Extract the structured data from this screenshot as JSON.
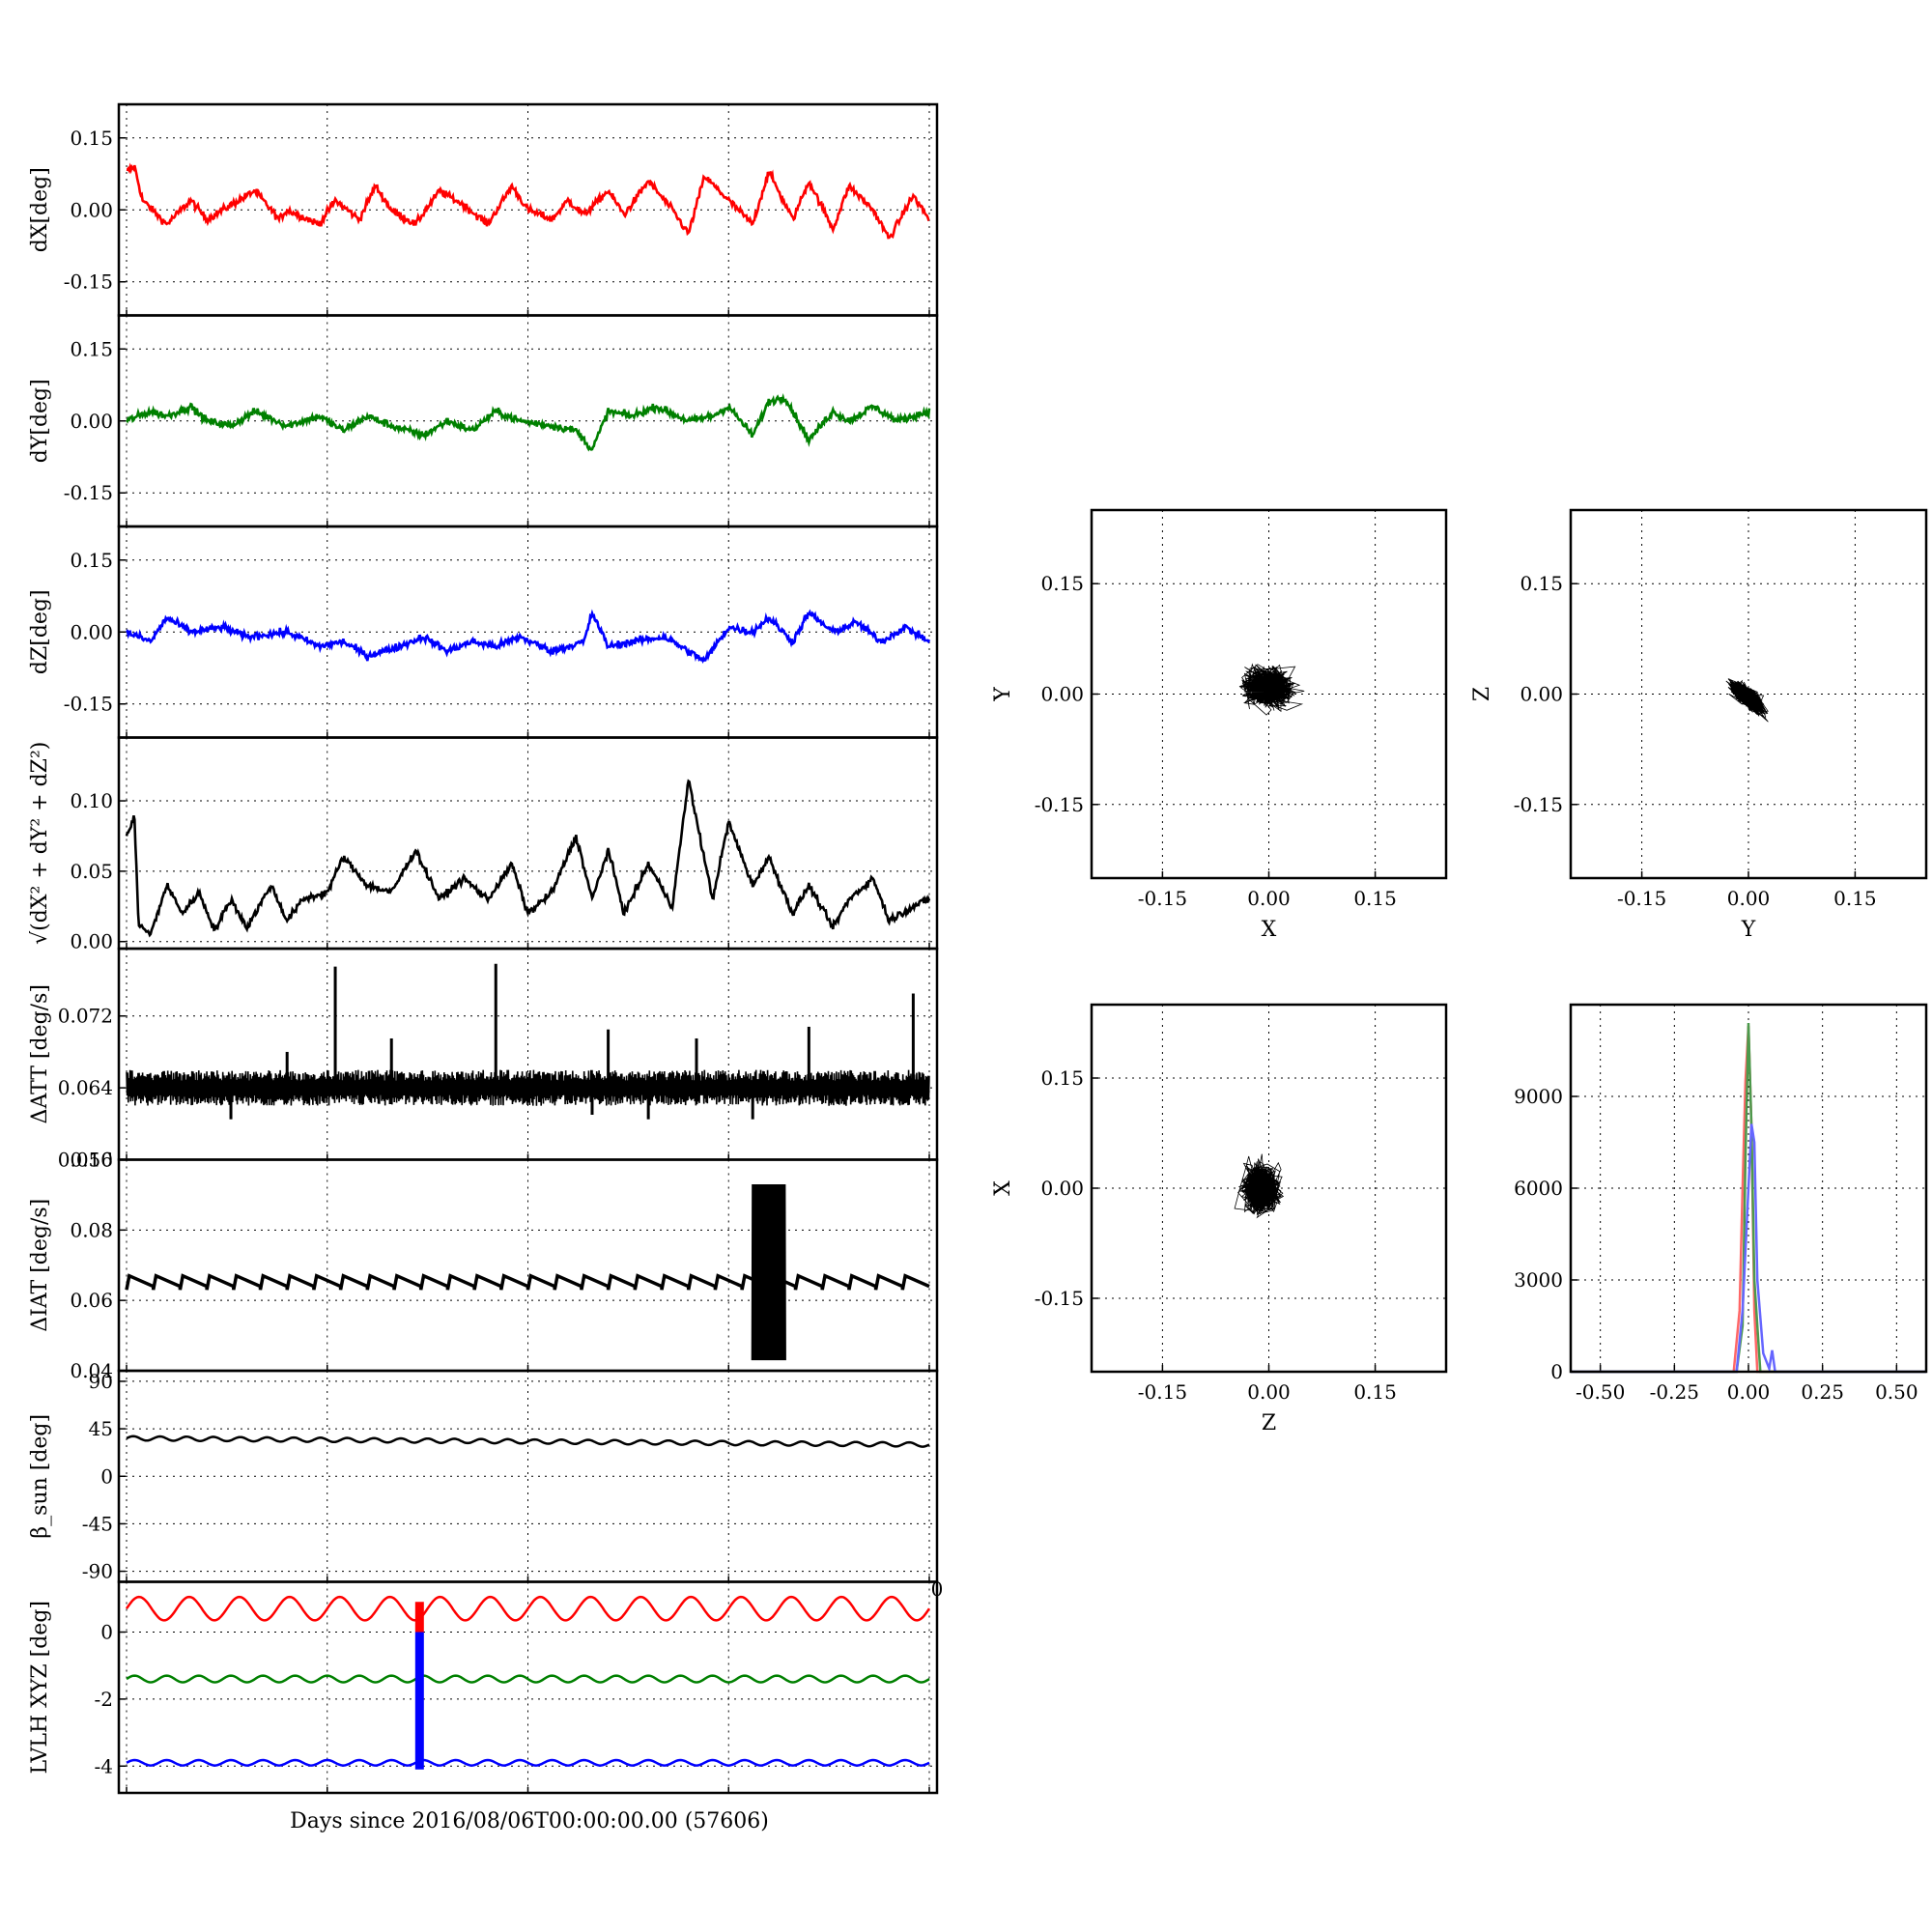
{
  "figure": {
    "xlabel": "Days since 2016/08/06T00:00:00.00 (57606)",
    "stray_tick": "0"
  },
  "chart_data": [
    {
      "id": "dX",
      "type": "line",
      "ylabel": "dX[deg]",
      "color": "#ff0000",
      "ylim": [
        -0.22,
        0.22
      ],
      "yticks": [
        "0.15",
        "0.00",
        "-0.15"
      ],
      "ytick_values": [
        0.15,
        0.0,
        -0.15
      ],
      "xlim": [
        0,
        1
      ],
      "x": [
        0.0,
        0.01,
        0.02,
        0.05,
        0.08,
        0.1,
        0.13,
        0.16,
        0.19,
        0.2,
        0.24,
        0.26,
        0.29,
        0.31,
        0.33,
        0.36,
        0.39,
        0.42,
        0.45,
        0.48,
        0.5,
        0.53,
        0.55,
        0.57,
        0.6,
        0.62,
        0.65,
        0.68,
        0.7,
        0.72,
        0.75,
        0.78,
        0.8,
        0.83,
        0.85,
        0.88,
        0.9,
        0.93,
        0.95,
        0.98,
        1.0
      ],
      "values": [
        0.08,
        0.09,
        0.02,
        -0.03,
        0.02,
        -0.02,
        0.01,
        0.04,
        -0.02,
        0.0,
        -0.03,
        0.02,
        -0.02,
        0.05,
        0.0,
        -0.03,
        0.04,
        0.01,
        -0.03,
        0.05,
        0.0,
        -0.02,
        0.02,
        -0.01,
        0.04,
        -0.01,
        0.06,
        0.0,
        -0.05,
        0.07,
        0.02,
        -0.03,
        0.08,
        -0.02,
        0.06,
        -0.04,
        0.05,
        0.0,
        -0.06,
        0.03,
        -0.02
      ]
    },
    {
      "id": "dY",
      "type": "line",
      "ylabel": "dY[deg]",
      "color": "#008000",
      "ylim": [
        -0.22,
        0.22
      ],
      "yticks": [
        "0.15",
        "0.00",
        "-0.15"
      ],
      "ytick_values": [
        0.15,
        0.0,
        -0.15
      ],
      "xlim": [
        0,
        1
      ],
      "x": [
        0.0,
        0.03,
        0.05,
        0.08,
        0.1,
        0.13,
        0.16,
        0.2,
        0.24,
        0.27,
        0.3,
        0.33,
        0.37,
        0.4,
        0.43,
        0.46,
        0.49,
        0.53,
        0.56,
        0.58,
        0.6,
        0.63,
        0.66,
        0.7,
        0.73,
        0.75,
        0.78,
        0.8,
        0.82,
        0.85,
        0.88,
        0.9,
        0.93,
        0.96,
        1.0
      ],
      "values": [
        0.0,
        0.02,
        0.01,
        0.03,
        0.0,
        -0.01,
        0.02,
        -0.01,
        0.01,
        -0.02,
        0.01,
        -0.01,
        -0.03,
        0.0,
        -0.02,
        0.02,
        0.0,
        -0.01,
        -0.02,
        -0.06,
        0.02,
        0.01,
        0.03,
        0.0,
        0.01,
        0.03,
        -0.03,
        0.04,
        0.05,
        -0.04,
        0.02,
        0.0,
        0.03,
        0.0,
        0.02
      ]
    },
    {
      "id": "dZ",
      "type": "line",
      "ylabel": "dZ[deg]",
      "color": "#0000ff",
      "ylim": [
        -0.22,
        0.22
      ],
      "yticks": [
        "0.15",
        "0.00",
        "-0.15"
      ],
      "ytick_values": [
        0.15,
        0.0,
        -0.15
      ],
      "xlim": [
        0,
        1
      ],
      "x": [
        0.0,
        0.03,
        0.05,
        0.08,
        0.12,
        0.15,
        0.2,
        0.24,
        0.27,
        0.3,
        0.34,
        0.37,
        0.4,
        0.43,
        0.46,
        0.49,
        0.53,
        0.57,
        0.58,
        0.6,
        0.63,
        0.67,
        0.7,
        0.72,
        0.75,
        0.78,
        0.8,
        0.83,
        0.85,
        0.88,
        0.91,
        0.94,
        0.97,
        1.0
      ],
      "values": [
        0.0,
        -0.02,
        0.03,
        0.0,
        0.01,
        -0.01,
        0.0,
        -0.03,
        -0.02,
        -0.05,
        -0.03,
        -0.01,
        -0.04,
        -0.02,
        -0.03,
        -0.01,
        -0.04,
        -0.02,
        0.04,
        -0.03,
        -0.02,
        -0.01,
        -0.04,
        -0.06,
        0.01,
        0.0,
        0.03,
        -0.02,
        0.04,
        0.0,
        0.02,
        -0.02,
        0.01,
        -0.02
      ]
    },
    {
      "id": "dR",
      "type": "line",
      "ylabel": "√(dX² + dY² + dZ²)",
      "color": "#000000",
      "ylim": [
        -0.005,
        0.145
      ],
      "yticks": [
        "0.10",
        "0.05",
        "0.00"
      ],
      "ytick_values": [
        0.1,
        0.05,
        0.0
      ],
      "xlim": [
        0,
        1
      ],
      "x": [
        0.0,
        0.01,
        0.015,
        0.03,
        0.05,
        0.07,
        0.09,
        0.11,
        0.13,
        0.15,
        0.18,
        0.2,
        0.22,
        0.25,
        0.27,
        0.3,
        0.33,
        0.36,
        0.39,
        0.42,
        0.45,
        0.48,
        0.5,
        0.53,
        0.56,
        0.58,
        0.6,
        0.62,
        0.65,
        0.68,
        0.7,
        0.73,
        0.75,
        0.78,
        0.8,
        0.83,
        0.85,
        0.88,
        0.9,
        0.93,
        0.95,
        0.98,
        1.0
      ],
      "values": [
        0.075,
        0.088,
        0.012,
        0.005,
        0.04,
        0.02,
        0.035,
        0.008,
        0.03,
        0.01,
        0.04,
        0.015,
        0.03,
        0.035,
        0.06,
        0.04,
        0.035,
        0.065,
        0.03,
        0.045,
        0.03,
        0.055,
        0.02,
        0.035,
        0.075,
        0.03,
        0.065,
        0.02,
        0.055,
        0.025,
        0.115,
        0.03,
        0.085,
        0.04,
        0.06,
        0.02,
        0.04,
        0.01,
        0.03,
        0.045,
        0.015,
        0.025,
        0.03
      ]
    },
    {
      "id": "dATT",
      "type": "line",
      "ylabel": "ΔATT [deg/s]",
      "color": "#000000",
      "ylim": [
        0.056,
        0.0795
      ],
      "yticks": [
        "0.072",
        "0.064",
        "0.056"
      ],
      "ytick_values": [
        0.072,
        0.064,
        0.056
      ],
      "xlim": [
        0,
        1
      ],
      "baseline": 0.0645,
      "band": [
        0.062,
        0.066
      ],
      "spikes": [
        {
          "x": 0.13,
          "y": 0.0605
        },
        {
          "x": 0.2,
          "y": 0.068
        },
        {
          "x": 0.26,
          "y": 0.0775
        },
        {
          "x": 0.33,
          "y": 0.0695
        },
        {
          "x": 0.46,
          "y": 0.0778
        },
        {
          "x": 0.58,
          "y": 0.061
        },
        {
          "x": 0.6,
          "y": 0.0705
        },
        {
          "x": 0.65,
          "y": 0.0605
        },
        {
          "x": 0.71,
          "y": 0.0695
        },
        {
          "x": 0.78,
          "y": 0.0605
        },
        {
          "x": 0.85,
          "y": 0.0708
        },
        {
          "x": 0.98,
          "y": 0.0745
        }
      ]
    },
    {
      "id": "dIAT",
      "type": "line",
      "ylabel": "ΔIAT [deg/s]",
      "color": "#000000",
      "ylim": [
        0.04,
        0.1
      ],
      "yticks": [
        "0.10",
        "0.08",
        "0.06",
        "0.04"
      ],
      "ytick_values": [
        0.1,
        0.08,
        0.06,
        0.04
      ],
      "xlim": [
        0,
        1
      ],
      "sawtooth": {
        "low": 0.063,
        "high": 0.067,
        "cycles": 30
      },
      "burst": {
        "x_start": 0.78,
        "x_end": 0.82,
        "low": 0.043,
        "high": 0.093
      }
    },
    {
      "id": "beta",
      "type": "line",
      "ylabel": "β_sun [deg]",
      "color": "#000000",
      "ylim": [
        -100,
        100
      ],
      "yticks": [
        "90",
        "45",
        "0",
        "-45",
        "-90"
      ],
      "ytick_values": [
        90,
        45,
        0,
        -45,
        -90
      ],
      "xlim": [
        0,
        1
      ],
      "start": 36,
      "end": 30,
      "amplitude": 2,
      "cycles": 30
    },
    {
      "id": "lvlh",
      "type": "line",
      "ylabel": "LVLH XYZ [deg]",
      "color": "#000000",
      "ylim": [
        -4.8,
        1.5
      ],
      "yticks": [
        "0",
        "-2",
        "-4"
      ],
      "ytick_values": [
        0,
        -2,
        -4
      ],
      "xlim": [
        0,
        1
      ],
      "series": [
        {
          "color": "#ff0000",
          "mean": 0.7,
          "amplitude": 0.35,
          "cycles": 16
        },
        {
          "color": "#008000",
          "mean": -1.4,
          "amplitude": 0.1,
          "cycles": 25
        },
        {
          "color": "#0000ff",
          "mean": -3.9,
          "amplitude": 0.08,
          "cycles": 25
        }
      ],
      "spike": {
        "x": 0.365,
        "top": 0.9,
        "bottom": -4.1,
        "split": 0.0
      }
    },
    {
      "id": "xy",
      "type": "scatter",
      "xlabel": "X",
      "ylabel": "Y",
      "color": "#000000",
      "xlim": [
        -0.25,
        0.25
      ],
      "ylim": [
        -0.25,
        0.25
      ],
      "xticks": [
        "-0.15",
        "0.00",
        "0.15"
      ],
      "xtick_values": [
        -0.15,
        0.0,
        0.15
      ],
      "yticks": [
        "0.15",
        "0.00",
        "-0.15"
      ],
      "ytick_values": [
        0.15,
        0.0,
        -0.15
      ],
      "center": [
        0.0,
        0.01
      ],
      "spread": [
        0.03,
        0.022
      ]
    },
    {
      "id": "yz",
      "type": "scatter",
      "xlabel": "Y",
      "ylabel": "Z",
      "color": "#000000",
      "xlim": [
        -0.25,
        0.25
      ],
      "ylim": [
        -0.25,
        0.25
      ],
      "xticks": [
        "-0.15",
        "0.00",
        "0.15"
      ],
      "xtick_values": [
        -0.15,
        0.0,
        0.15
      ],
      "yticks": [
        "0.15",
        "0.00",
        "-0.15"
      ],
      "ytick_values": [
        0.15,
        0.0,
        -0.15
      ],
      "center": [
        0.0,
        -0.005
      ],
      "spread": [
        0.02,
        0.02
      ],
      "tilt": -0.9
    },
    {
      "id": "zx",
      "type": "scatter",
      "xlabel": "Z",
      "ylabel": "X",
      "color": "#000000",
      "xlim": [
        -0.25,
        0.25
      ],
      "ylim": [
        -0.25,
        0.25
      ],
      "xticks": [
        "-0.15",
        "0.00",
        "0.15"
      ],
      "xtick_values": [
        -0.15,
        0.0,
        0.15
      ],
      "yticks": [
        "0.15",
        "0.00",
        "-0.15"
      ],
      "ytick_values": [
        0.15,
        0.0,
        -0.15
      ],
      "center": [
        -0.01,
        0.0
      ],
      "spread": [
        0.022,
        0.028
      ]
    },
    {
      "id": "hist",
      "type": "line",
      "xlabel": "",
      "ylabel": "",
      "xlim": [
        -0.6,
        0.6
      ],
      "ylim": [
        0,
        12000
      ],
      "xticks": [
        "-0.50",
        "-0.25",
        "0.00",
        "0.25",
        "0.50"
      ],
      "xtick_values": [
        -0.5,
        -0.25,
        0.0,
        0.25,
        0.5
      ],
      "yticks": [
        "9000",
        "6000",
        "3000",
        "0"
      ],
      "ytick_values": [
        9000,
        6000,
        3000,
        0
      ],
      "series": [
        {
          "color": "#ff6666",
          "x": [
            -0.6,
            -0.05,
            -0.03,
            -0.02,
            -0.01,
            0.0,
            0.01,
            0.02,
            0.03,
            0.6
          ],
          "values": [
            0,
            0,
            2000,
            6000,
            9500,
            11300,
            8000,
            2000,
            0,
            0
          ]
        },
        {
          "color": "#4c994c",
          "x": [
            -0.6,
            -0.04,
            -0.02,
            -0.01,
            0.0,
            0.01,
            0.02,
            0.04,
            0.6
          ],
          "values": [
            0,
            0,
            1500,
            7000,
            11400,
            8000,
            3000,
            0,
            0
          ]
        },
        {
          "color": "#6666ff",
          "x": [
            -0.6,
            -0.04,
            -0.02,
            0.0,
            0.01,
            0.02,
            0.03,
            0.05,
            0.07,
            0.08,
            0.09,
            0.6
          ],
          "values": [
            0,
            0,
            2000,
            6000,
            8100,
            7500,
            3000,
            600,
            100,
            700,
            0,
            0
          ]
        }
      ]
    }
  ]
}
